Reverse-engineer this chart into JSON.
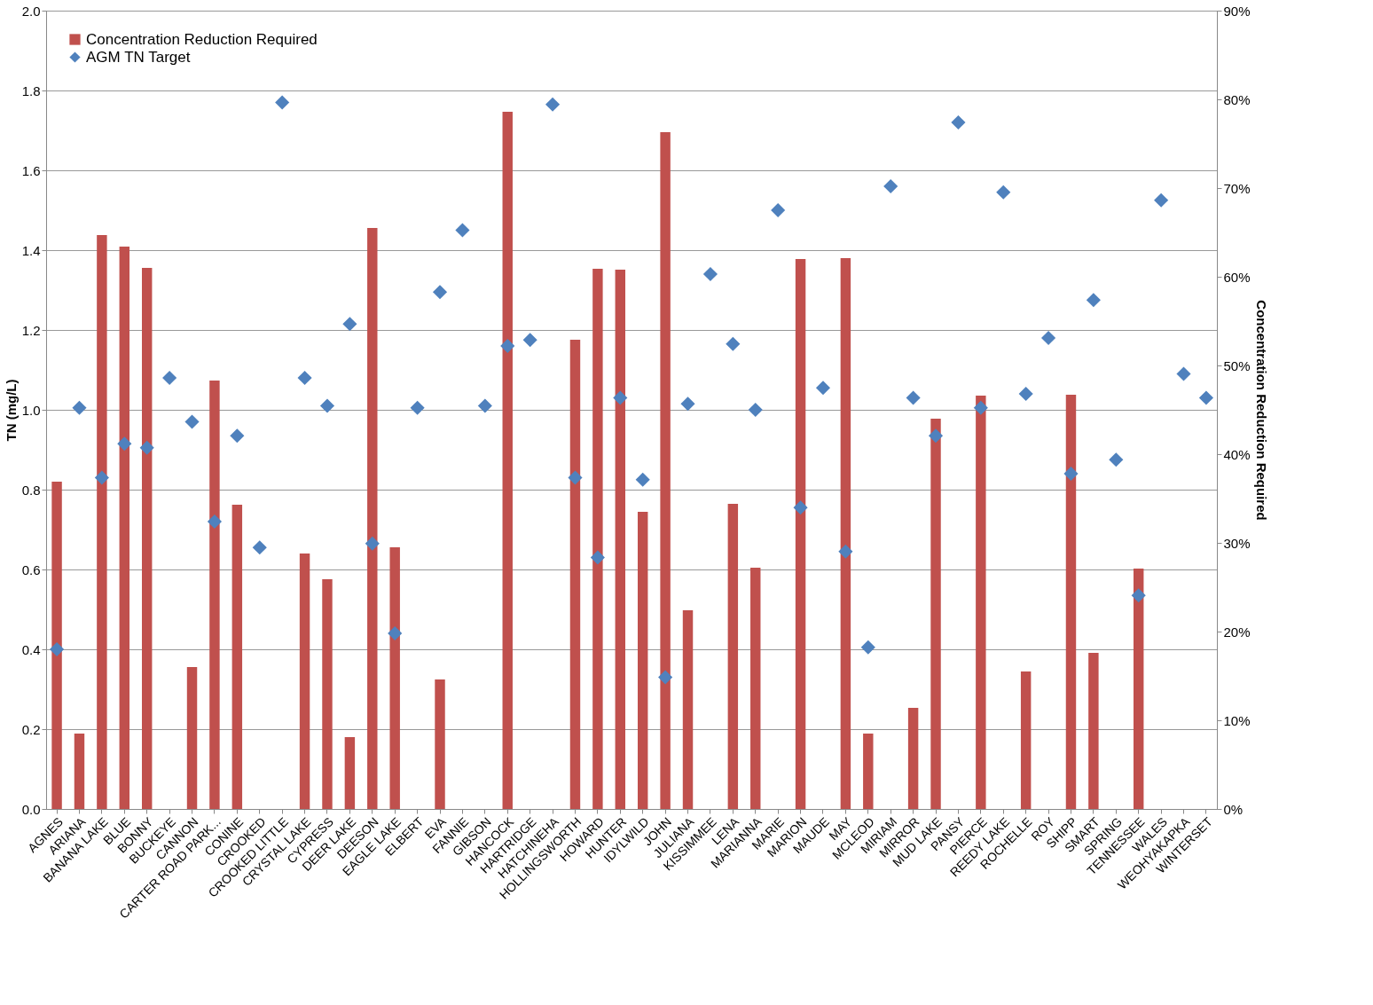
{
  "chart_data": {
    "type": "bar",
    "ylabel": "TN (mg/L)",
    "y2label": "Concentration Reduction Required",
    "categories": [
      "AGNES",
      "ARIANA",
      "BANANA LAKE",
      "BLUE",
      "BONNY",
      "BUCKEYE",
      "CANNON",
      "CARTER ROAD PARK...",
      "CONINE",
      "CROOKED",
      "CROOKED LITTLE",
      "CRYSTAL LAKE",
      "CYPRESS",
      "DEER LAKE",
      "DEESON",
      "EAGLE LAKE",
      "ELBERT",
      "EVA",
      "FANNIE",
      "GIBSON",
      "HANCOCK",
      "HARTRIDGE",
      "HATCHINEHA",
      "HOLLINGSWORTH",
      "HOWARD",
      "HUNTER",
      "IDYLWILD",
      "JOHN",
      "JULIANA",
      "KISSIMMEE",
      "LENA",
      "MARIANNA",
      "MARIE",
      "MARION",
      "MAUDE",
      "MAY",
      "MCLEOD",
      "MIRIAM",
      "MIRROR",
      "MUD LAKE",
      "PANSY",
      "PIERCE",
      "REEDY LAKE",
      "ROCHELLE",
      "ROY",
      "SHIPP",
      "SMART",
      "SPRING",
      "TENNESSEE",
      "WALES",
      "WEOHYAKAPKA",
      "WINTERSET"
    ],
    "series": [
      {
        "name": "Concentration Reduction Required",
        "type": "bar",
        "axis": "y2",
        "color": "#c0504d",
        "values": [
          36.9,
          8.5,
          64.7,
          63.4,
          61.0,
          0,
          16.0,
          48.3,
          34.3,
          0,
          0,
          28.8,
          25.9,
          8.1,
          65.5,
          29.5,
          0,
          14.6,
          0,
          0,
          78.6,
          0,
          0,
          52.9,
          60.9,
          60.8,
          33.5,
          76.3,
          22.4,
          0,
          34.4,
          27.2,
          0,
          62.0,
          0,
          62.1,
          8.5,
          0,
          11.4,
          44.0,
          0,
          46.6,
          0,
          15.5,
          0,
          46.7,
          17.6,
          0,
          27.1,
          0,
          0,
          0
        ]
      },
      {
        "name": "AGM TN Target",
        "type": "scatter",
        "marker": "diamond",
        "color": "#4f81bd",
        "values": [
          0.4,
          1.005,
          0.83,
          0.915,
          0.905,
          1.08,
          0.97,
          0.72,
          0.935,
          0.655,
          1.77,
          1.08,
          1.01,
          1.215,
          0.665,
          0.44,
          1.005,
          1.295,
          1.45,
          1.01,
          1.16,
          1.175,
          1.765,
          0.83,
          0.63,
          1.03,
          0.825,
          0.33,
          1.015,
          1.34,
          1.165,
          1.0,
          1.5,
          0.755,
          1.055,
          0.645,
          0.405,
          1.56,
          1.03,
          0.935,
          1.72,
          1.005,
          1.545,
          1.04,
          1.18,
          0.84,
          1.275,
          0.875,
          0.535,
          1.525,
          1.09,
          1.03
        ]
      }
    ],
    "ylim": [
      0,
      2.0
    ],
    "yticks": [
      {
        "value": 0,
        "label": "0.0"
      },
      {
        "value": 0.2,
        "label": "0.2"
      },
      {
        "value": 0.4,
        "label": "0.4"
      },
      {
        "value": 0.6,
        "label": "0.6"
      },
      {
        "value": 0.8,
        "label": "0.8"
      },
      {
        "value": 1.0,
        "label": "1.0"
      },
      {
        "value": 1.2,
        "label": "1.2"
      },
      {
        "value": 1.4,
        "label": "1.4"
      },
      {
        "value": 1.6,
        "label": "1.6"
      },
      {
        "value": 1.8,
        "label": "1.8"
      },
      {
        "value": 2.0,
        "label": "2.0"
      }
    ],
    "y2lim": [
      0,
      90
    ],
    "y2ticks": [
      {
        "value": 0,
        "label": "0%"
      },
      {
        "value": 10,
        "label": "10%"
      },
      {
        "value": 20,
        "label": "20%"
      },
      {
        "value": 30,
        "label": "30%"
      },
      {
        "value": 40,
        "label": "40%"
      },
      {
        "value": 50,
        "label": "50%"
      },
      {
        "value": 60,
        "label": "60%"
      },
      {
        "value": 70,
        "label": "70%"
      },
      {
        "value": 80,
        "label": "80%"
      },
      {
        "value": 90,
        "label": "90%"
      }
    ],
    "grid": "y",
    "legend": "top left"
  }
}
